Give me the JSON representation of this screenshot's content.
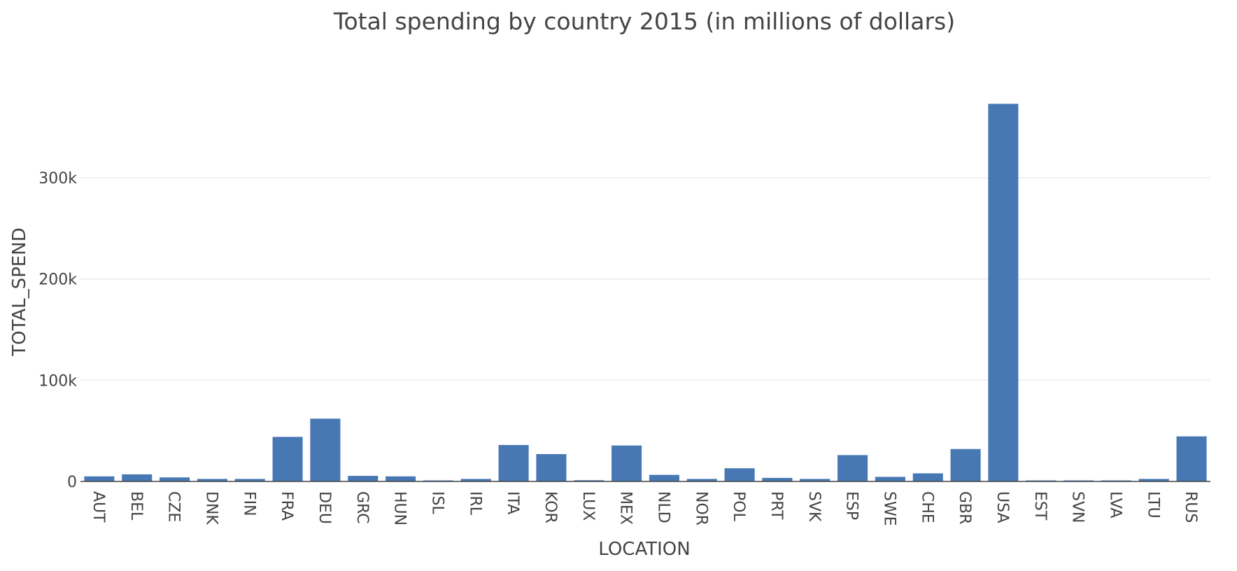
{
  "chart_data": {
    "type": "bar",
    "title": "Total spending by country 2015 (in millions of dollars)",
    "xlabel": "LOCATION",
    "ylabel": "TOTAL_SPEND",
    "ylim": [
      0,
      385000
    ],
    "yticks": [
      {
        "value": 0,
        "label": "0"
      },
      {
        "value": 100000,
        "label": "100k"
      },
      {
        "value": 200000,
        "label": "200k"
      },
      {
        "value": 300000,
        "label": "300k"
      }
    ],
    "grid": true,
    "bar_color": "#4878b4",
    "categories": [
      "AUT",
      "BEL",
      "CZE",
      "DNK",
      "FIN",
      "FRA",
      "DEU",
      "GRC",
      "HUN",
      "ISL",
      "IRL",
      "ITA",
      "KOR",
      "LUX",
      "MEX",
      "NLD",
      "NOR",
      "POL",
      "PRT",
      "SVK",
      "ESP",
      "SWE",
      "CHE",
      "GBR",
      "USA",
      "EST",
      "SVN",
      "LVA",
      "LTU",
      "RUS"
    ],
    "values": [
      5000,
      7000,
      4000,
      2500,
      2500,
      44000,
      62000,
      5500,
      5000,
      1000,
      2500,
      36000,
      27000,
      1200,
      35500,
      6500,
      2500,
      13000,
      3500,
      2500,
      26000,
      4500,
      8000,
      32000,
      373000,
      1000,
      1000,
      1000,
      2500,
      44500
    ]
  }
}
